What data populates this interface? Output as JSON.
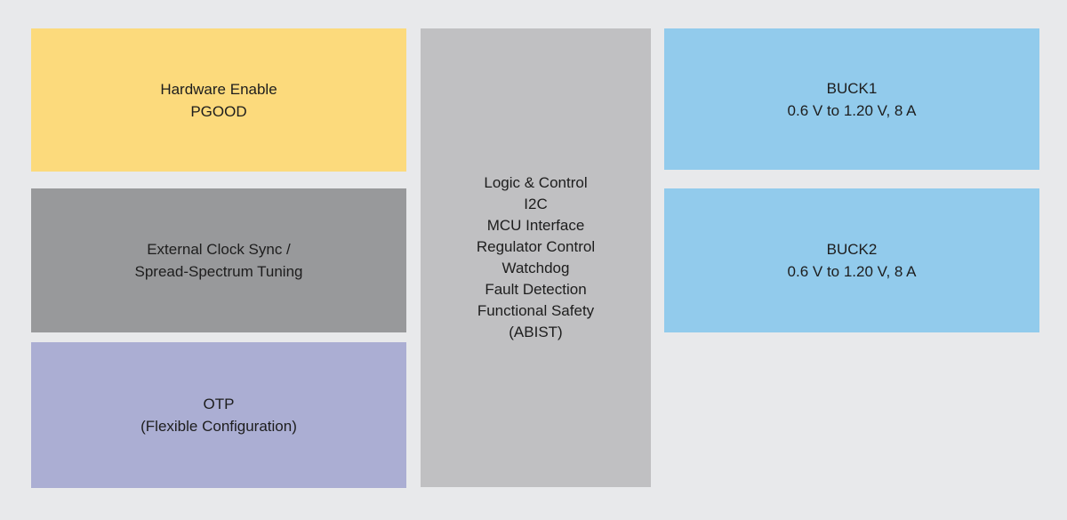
{
  "canvas": {
    "background": "#e8e9eb",
    "text_color": "#1d1d1d"
  },
  "blocks": {
    "hardware_enable": {
      "fill": "#fcda7c",
      "lines": [
        "Hardware Enable",
        "PGOOD"
      ]
    },
    "external_clock": {
      "fill": "#98999b",
      "lines": [
        "External Clock Sync /",
        "Spread-Spectrum Tuning"
      ]
    },
    "otp": {
      "fill": "#abaed3",
      "lines": [
        "OTP",
        "(Flexible Configuration)"
      ]
    },
    "logic_control": {
      "fill": "#c0c0c2",
      "lines": [
        "Logic & Control",
        "I2C",
        "MCU Interface",
        "Regulator Control",
        "Watchdog",
        "Fault Detection",
        "Functional Safety",
        "(ABIST)"
      ]
    },
    "buck1": {
      "fill": "#92cbec",
      "lines": [
        "BUCK1",
        "0.6 V to 1.20 V, 8 A"
      ]
    },
    "buck2": {
      "fill": "#92cbec",
      "lines": [
        "BUCK2",
        "0.6 V to 1.20 V, 8 A"
      ]
    }
  }
}
